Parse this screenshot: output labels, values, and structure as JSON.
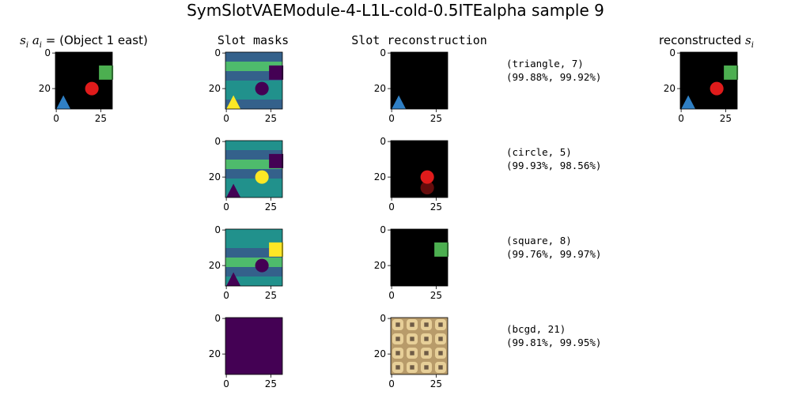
{
  "title": "SymSlotVAEModule-4-L1L-cold-0.5ITEalpha sample 9",
  "columns": {
    "input": {
      "prefix_math": "s",
      "prefix_sub": "i",
      "prefix_math2": "a",
      "prefix_sub2": "i",
      "prefix_eq": " = ",
      "text": "(Object 1 east)"
    },
    "masks": "Slot masks",
    "recon": "Slot reconstruction",
    "final": {
      "text": "reconstructed ",
      "math": "s",
      "sub": "i"
    }
  },
  "slots": [
    {
      "label": "(triangle, 7)",
      "scores": "(99.88%, 99.92%)"
    },
    {
      "label": "(circle, 5)",
      "scores": "(99.93%, 98.56%)"
    },
    {
      "label": "(square, 8)",
      "scores": "(99.76%, 99.97%)"
    },
    {
      "label": "(bcgd, 21)",
      "scores": "(99.81%, 99.95%)"
    }
  ],
  "chart_data": {
    "type": "image_grid",
    "image_extent": [
      0,
      32
    ],
    "x_ticks": [
      0,
      25
    ],
    "y_ticks": [
      0,
      20
    ],
    "scene_input": {
      "background": "#000000",
      "objects": [
        {
          "shape": "triangle",
          "color": "#2f7fc4",
          "x": 4,
          "y": 28
        },
        {
          "shape": "circle",
          "color": "#e01b1b",
          "x": 20,
          "y": 20
        },
        {
          "shape": "square",
          "color": "#4caf50",
          "x": 28,
          "y": 11
        }
      ]
    },
    "scene_reconstructed": {
      "background": "#000000",
      "objects": [
        {
          "shape": "triangle",
          "color": "#2f7fc4",
          "x": 4,
          "y": 28
        },
        {
          "shape": "circle",
          "color": "#e01b1b",
          "x": 20,
          "y": 20
        },
        {
          "shape": "square",
          "color": "#4caf50",
          "x": 28,
          "y": 11
        }
      ]
    },
    "colormap": {
      "low": "#440154",
      "mid": "#21918c",
      "midlow": "#3b528b",
      "midhigh": "#5ec962",
      "high": "#fde725"
    }
  }
}
